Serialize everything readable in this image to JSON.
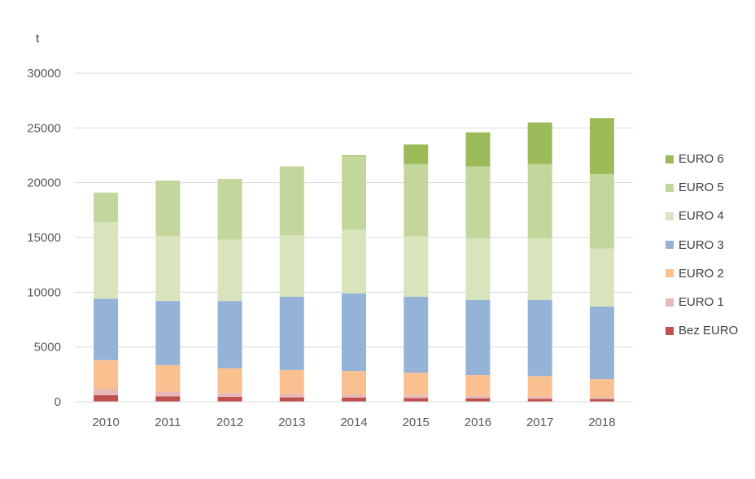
{
  "chart_data": {
    "type": "bar",
    "stacked": true,
    "unit_label": "t",
    "categories": [
      "2010",
      "2011",
      "2012",
      "2013",
      "2014",
      "2015",
      "2016",
      "2017",
      "2018"
    ],
    "ylim": [
      0,
      30000
    ],
    "yticks": [
      0,
      5000,
      10000,
      15000,
      20000,
      25000,
      30000
    ],
    "grid": true,
    "legend_position": "right",
    "series": [
      {
        "name": "Bez EURO",
        "color": "#c0504d",
        "values": [
          600,
          500,
          450,
          400,
          380,
          330,
          300,
          270,
          250
        ]
      },
      {
        "name": "EURO 1",
        "color": "#e6b9b8",
        "values": [
          550,
          400,
          350,
          300,
          280,
          250,
          230,
          200,
          180
        ]
      },
      {
        "name": "EURO 2",
        "color": "#fac090",
        "values": [
          2650,
          2450,
          2250,
          2200,
          2150,
          2070,
          1920,
          1880,
          1640
        ]
      },
      {
        "name": "EURO 3",
        "color": "#95b3d7",
        "values": [
          5600,
          5850,
          6150,
          6700,
          7090,
          6950,
          6850,
          6950,
          6630
        ]
      },
      {
        "name": "EURO 4",
        "color": "#d7e4bc",
        "values": [
          7000,
          5950,
          5600,
          5600,
          5800,
          5500,
          5600,
          5600,
          5300
        ]
      },
      {
        "name": "EURO 5",
        "color": "#c3d69b",
        "values": [
          2700,
          5050,
          5550,
          6300,
          6700,
          6600,
          6600,
          6800,
          6800
        ]
      },
      {
        "name": "EURO 6",
        "color": "#9bbb59",
        "values": [
          0,
          0,
          0,
          0,
          100,
          1800,
          3100,
          3800,
          5100
        ]
      }
    ]
  }
}
